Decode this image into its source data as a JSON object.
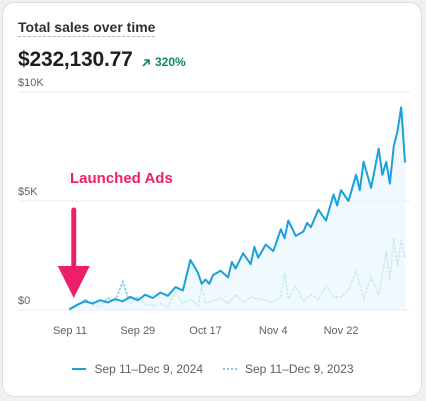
{
  "header": {
    "title": "Total sales over time",
    "total": "$232,130.77",
    "change": "320%"
  },
  "colors": {
    "current": "#1aa0dc",
    "previous": "#7fcaea",
    "annotation": "#ee1f6a",
    "positive": "#0d8a52"
  },
  "annotation": {
    "label": "Launched Ads"
  },
  "chart_data": {
    "type": "line",
    "title": "Total sales over time",
    "ylim": [
      0,
      10000
    ],
    "y_ticks": [
      "$10K",
      "$5K",
      "$0"
    ],
    "y_tick_values": [
      10000,
      5000,
      0
    ],
    "x_ticks": [
      "Sep 11",
      "Sep 29",
      "Oct 17",
      "Nov 4",
      "Nov 22"
    ],
    "x_tick_days": [
      0,
      18,
      36,
      54,
      72
    ],
    "x_domain": [
      0,
      89
    ],
    "grid": true,
    "legend_position": "bottom",
    "annotation": {
      "label": "Launched Ads",
      "x_day": 1
    },
    "series": [
      {
        "name": "Sep 11–Dec 9, 2024",
        "style": "solid",
        "area": true,
        "x": [
          0,
          2,
          4,
          6,
          8,
          10,
          12,
          14,
          16,
          18,
          20,
          22,
          24,
          26,
          28,
          30,
          32,
          34,
          35,
          36,
          37,
          38,
          40,
          42,
          43,
          44,
          46,
          48,
          49,
          50,
          52,
          54,
          56,
          57,
          58,
          60,
          62,
          63,
          64,
          66,
          68,
          70,
          71,
          72,
          74,
          76,
          77,
          78,
          80,
          82,
          83,
          84,
          85,
          86,
          87,
          88,
          89
        ],
        "y": [
          50,
          250,
          400,
          300,
          450,
          350,
          500,
          400,
          600,
          450,
          700,
          550,
          800,
          650,
          1050,
          900,
          2300,
          1700,
          1200,
          1400,
          1200,
          1600,
          1800,
          1500,
          2200,
          1900,
          2600,
          2100,
          2900,
          2400,
          3000,
          2700,
          3700,
          3300,
          4100,
          3400,
          3600,
          4000,
          3800,
          4600,
          4100,
          5300,
          4800,
          5500,
          5000,
          6200,
          5500,
          6800,
          5600,
          7400,
          6200,
          6800,
          5800,
          7500,
          8200,
          9300,
          6800
        ]
      },
      {
        "name": "Sep 11–Dec 9, 2023",
        "style": "dotted",
        "area": false,
        "x": [
          0,
          2,
          4,
          6,
          8,
          10,
          12,
          14,
          16,
          18,
          20,
          22,
          24,
          26,
          28,
          30,
          32,
          34,
          35,
          36,
          38,
          40,
          42,
          44,
          46,
          48,
          50,
          52,
          54,
          56,
          57,
          58,
          60,
          62,
          64,
          66,
          68,
          70,
          72,
          74,
          76,
          78,
          80,
          82,
          84,
          85,
          86,
          87,
          88,
          89
        ],
        "y": [
          0,
          150,
          500,
          250,
          150,
          550,
          400,
          1300,
          300,
          600,
          250,
          200,
          300,
          150,
          800,
          300,
          500,
          200,
          1100,
          300,
          400,
          550,
          300,
          700,
          350,
          600,
          500,
          450,
          350,
          600,
          1700,
          500,
          1100,
          400,
          700,
          500,
          1100,
          600,
          600,
          900,
          1800,
          500,
          1500,
          700,
          2700,
          1400,
          3300,
          2000,
          3200,
          2400
        ]
      }
    ]
  }
}
